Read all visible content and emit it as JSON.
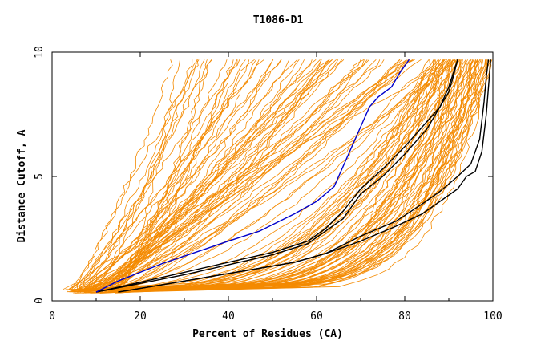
{
  "chart_data": {
    "type": "line",
    "title": "T1086-D1",
    "xlabel": "Percent of Residues (CA)",
    "ylabel": "Distance Cutoff, A",
    "xlim": [
      0,
      100
    ],
    "ylim": [
      0,
      10
    ],
    "xticks": [
      0,
      20,
      40,
      60,
      80,
      100
    ],
    "yticks": [
      0,
      5,
      10
    ],
    "grid": false,
    "colors": {
      "background": "#f48a00",
      "highlight": "#0000cc",
      "reference": "#000000"
    },
    "highlight_series": {
      "x": [
        10,
        15,
        20,
        25,
        30,
        35,
        40,
        47,
        55,
        60,
        64,
        66,
        68,
        70,
        72,
        74,
        77,
        79,
        81
      ],
      "y": [
        0.35,
        0.8,
        1.15,
        1.5,
        1.8,
        2.1,
        2.4,
        2.8,
        3.5,
        4.0,
        4.6,
        5.4,
        6.2,
        7.0,
        7.8,
        8.2,
        8.6,
        9.2,
        9.7
      ]
    },
    "reference_series": [
      {
        "x": [
          10,
          20,
          30,
          40,
          50,
          58,
          62,
          66,
          70,
          75,
          80,
          85,
          88,
          90,
          91,
          92
        ],
        "y": [
          0.35,
          0.7,
          1.05,
          1.45,
          1.85,
          2.3,
          2.8,
          3.3,
          4.3,
          5.0,
          5.9,
          6.9,
          7.8,
          8.4,
          9.0,
          9.7
        ]
      },
      {
        "x": [
          10,
          20,
          30,
          40,
          50,
          58,
          62,
          66,
          70,
          75,
          80,
          84,
          88,
          90,
          92
        ],
        "y": [
          0.35,
          0.75,
          1.15,
          1.55,
          1.95,
          2.4,
          2.9,
          3.6,
          4.5,
          5.3,
          6.2,
          7.0,
          7.8,
          8.6,
          9.7
        ]
      },
      {
        "x": [
          15,
          25,
          35,
          45,
          55,
          62,
          70,
          78,
          84,
          88,
          92,
          94,
          96,
          97.5,
          98.5,
          99.5
        ],
        "y": [
          0.35,
          0.65,
          0.95,
          1.25,
          1.55,
          1.9,
          2.4,
          3.0,
          3.5,
          4.0,
          4.5,
          5.0,
          5.2,
          6.0,
          7.5,
          9.7
        ]
      },
      {
        "x": [
          15,
          25,
          35,
          45,
          55,
          62,
          70,
          78,
          84,
          88,
          92,
          95,
          97,
          98,
          98.5,
          99
        ],
        "y": [
          0.35,
          0.65,
          0.95,
          1.25,
          1.55,
          1.9,
          2.6,
          3.2,
          3.9,
          4.4,
          5.0,
          5.5,
          6.5,
          8.0,
          9.0,
          9.7
        ]
      }
    ],
    "background_series": {
      "count": 130,
      "description": "many orange curves spanning the range between steep (left) and shallow (right) profiles"
    }
  }
}
